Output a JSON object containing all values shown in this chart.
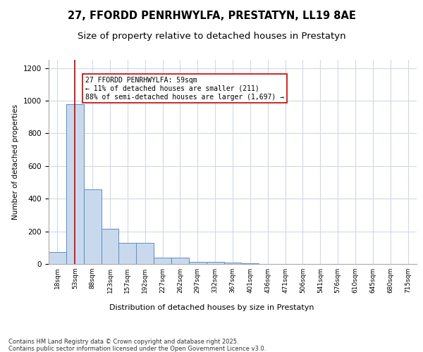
{
  "title_line1": "27, FFORDD PENRHWYLFA, PRESTATYN, LL19 8AE",
  "title_line2": "Size of property relative to detached houses in Prestatyn",
  "xlabel": "Distribution of detached houses by size in Prestatyn",
  "ylabel": "Number of detached properties",
  "categories": [
    "18sqm",
    "53sqm",
    "88sqm",
    "123sqm",
    "157sqm",
    "192sqm",
    "227sqm",
    "262sqm",
    "297sqm",
    "332sqm",
    "367sqm",
    "401sqm",
    "436sqm",
    "471sqm",
    "506sqm",
    "541sqm",
    "576sqm",
    "610sqm",
    "645sqm",
    "680sqm",
    "715sqm"
  ],
  "values": [
    75,
    980,
    455,
    215,
    130,
    130,
    40,
    40,
    15,
    15,
    10,
    5,
    0,
    0,
    0,
    0,
    0,
    0,
    0,
    0,
    0
  ],
  "bar_color": "#c9d9ed",
  "bar_edge_color": "#5b8dc0",
  "vline_x": 1,
  "vline_color": "#cc0000",
  "annotation_text": "27 FFORDD PENRHWYLFA: 59sqm\n← 11% of detached houses are smaller (211)\n88% of semi-detached houses are larger (1,697) →",
  "annotation_box_color": "#ffffff",
  "annotation_box_edge": "#cc0000",
  "ylim": [
    0,
    1250
  ],
  "yticks": [
    0,
    200,
    400,
    600,
    800,
    1000,
    1200
  ],
  "background_color": "#ffffff",
  "grid_color": "#d0d8e8",
  "footer_text": "Contains HM Land Registry data © Crown copyright and database right 2025.\nContains public sector information licensed under the Open Government Licence v3.0.",
  "title_fontsize": 10.5,
  "subtitle_fontsize": 9.5,
  "annotation_fontsize": 7,
  "footer_fontsize": 6
}
